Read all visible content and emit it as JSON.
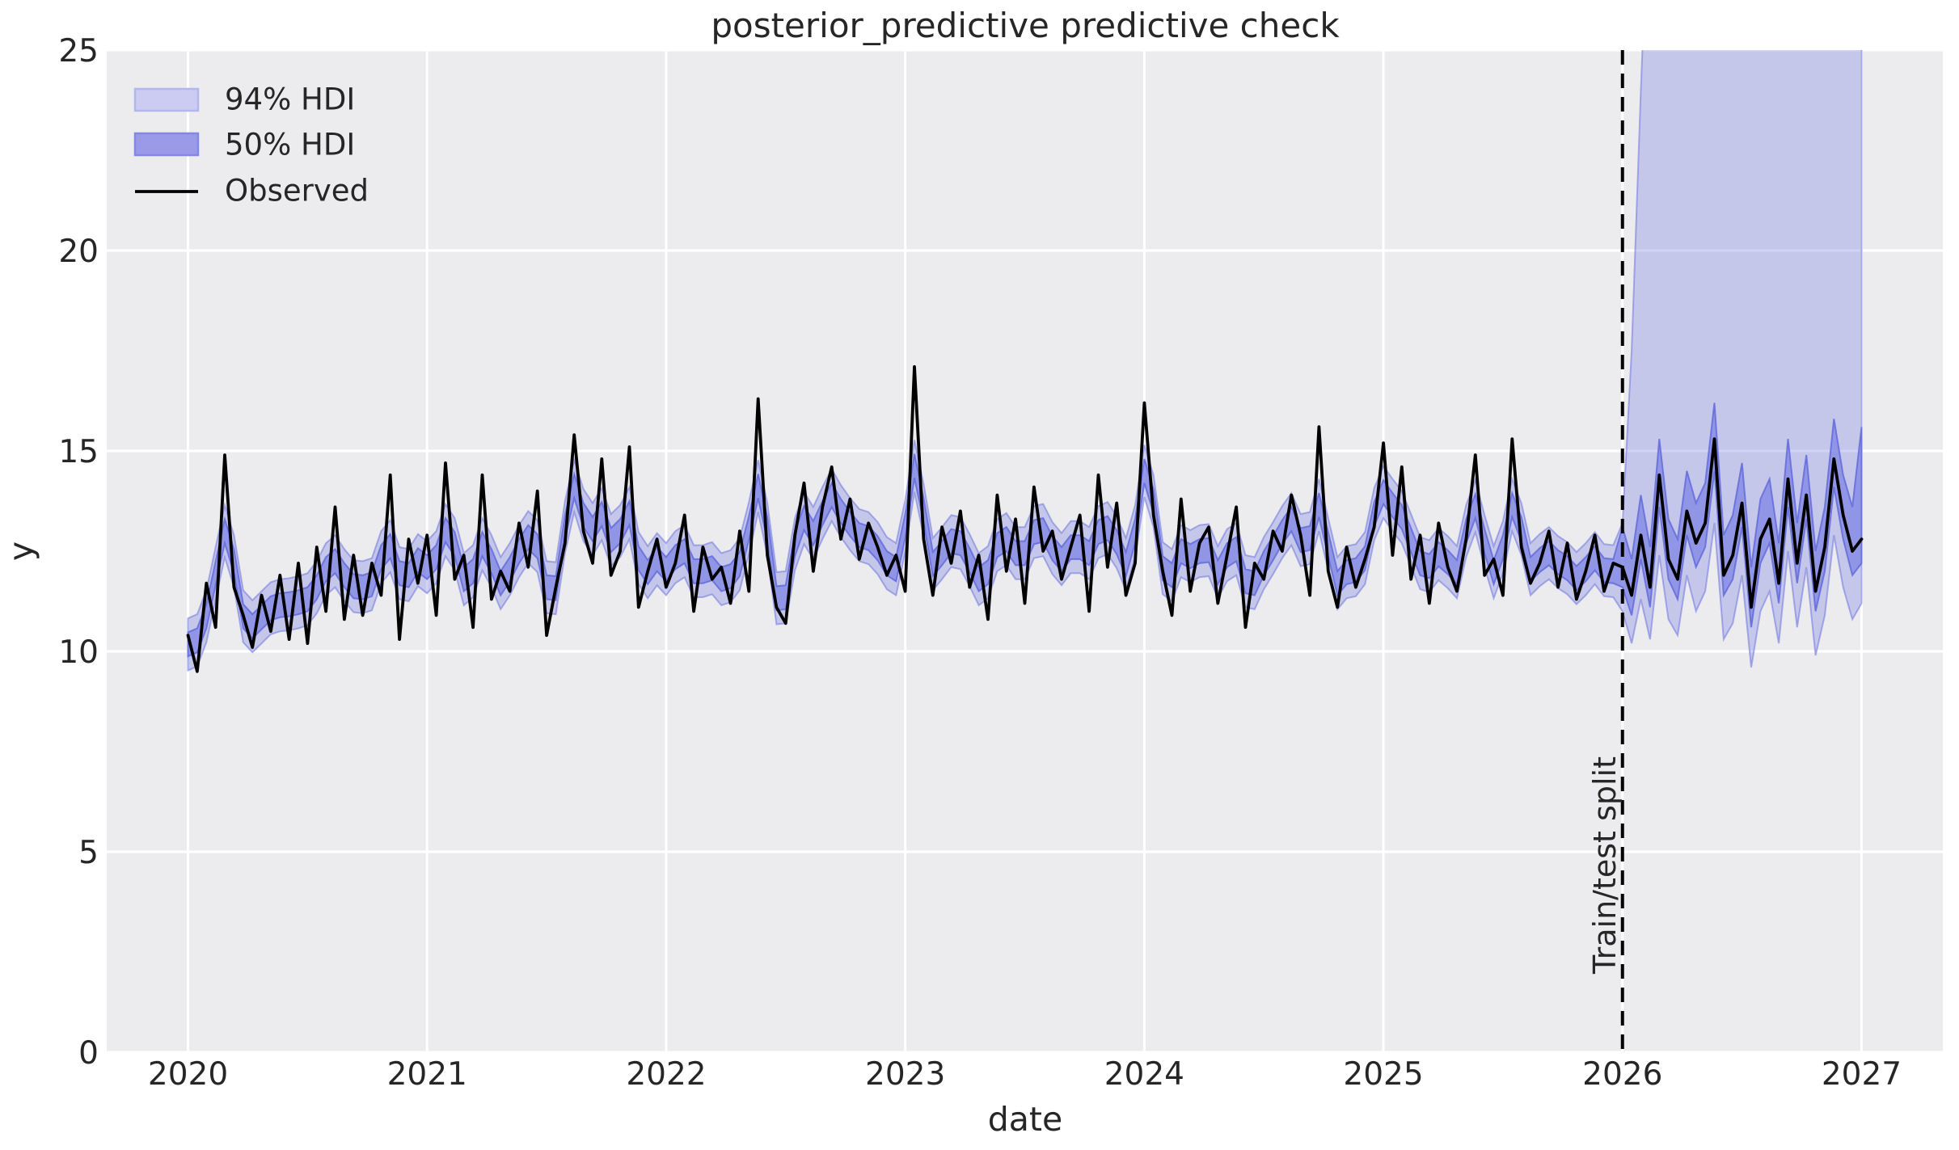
{
  "chart_data": {
    "type": "line",
    "title": "posterior_predictive predictive check",
    "xlabel": "date",
    "ylabel": "y",
    "xlim": [
      2019.66,
      2027.34
    ],
    "ylim": [
      0,
      25
    ],
    "xticks": [
      2020,
      2021,
      2022,
      2023,
      2024,
      2025,
      2026,
      2027
    ],
    "yticks": [
      0,
      5,
      10,
      15,
      20,
      25
    ],
    "grid": true,
    "legend_position": "upper left",
    "split": {
      "x": 2026.0,
      "label": "Train/test split"
    },
    "legend": {
      "items": [
        {
          "label": "94% HDI",
          "swatch": "patch",
          "fill": "#ccccf2",
          "edge": "#b4b6ee"
        },
        {
          "label": "50% HDI",
          "swatch": "patch",
          "fill": "#9a9ae9",
          "edge": "#8487e4"
        },
        {
          "label": "Observed",
          "swatch": "line",
          "color": "#000000"
        }
      ]
    },
    "colors": {
      "figure_bg": "#ffffff",
      "axes_bg": "#ececee",
      "grid": "#ffffff",
      "observed": "#000000",
      "split_line": "#000000",
      "hdi94_fill": "rgba(123,130,226,0.35)",
      "hdi94_edge": "rgba(110,117,222,0.55)",
      "hdi50_fill": "rgba(123,130,226,0.70)",
      "hdi50_edge": "rgba(95,102,218,0.80)",
      "text": "#262626"
    },
    "series": {
      "x_start": 2020.0,
      "x_step_years": 0.03846153846,
      "forecast_start_index": 156,
      "hdi94_train_halfwidth": 0.65,
      "hdi50_train_halfwidth": 0.3,
      "observed": [
        10.4,
        9.5,
        11.7,
        10.6,
        14.9,
        11.6,
        10.9,
        10.1,
        11.4,
        10.5,
        11.9,
        10.3,
        12.2,
        10.2,
        12.6,
        11.0,
        13.6,
        10.8,
        12.4,
        10.9,
        12.2,
        11.4,
        14.4,
        10.3,
        12.8,
        11.7,
        12.9,
        10.9,
        14.7,
        11.8,
        12.4,
        10.6,
        14.4,
        11.3,
        12.0,
        11.5,
        13.2,
        12.1,
        14.0,
        10.4,
        11.6,
        12.7,
        15.4,
        13.0,
        12.2,
        14.8,
        11.9,
        12.5,
        15.1,
        11.1,
        12.0,
        12.8,
        11.6,
        12.2,
        13.4,
        11.0,
        12.6,
        11.8,
        12.1,
        11.2,
        13.0,
        11.5,
        16.3,
        12.4,
        11.1,
        10.7,
        12.9,
        14.2,
        12.0,
        13.6,
        14.6,
        12.8,
        13.8,
        12.3,
        13.2,
        12.6,
        11.9,
        12.4,
        11.5,
        17.1,
        12.8,
        11.4,
        13.1,
        12.2,
        13.5,
        11.6,
        12.4,
        10.8,
        13.9,
        12.0,
        13.3,
        11.2,
        14.1,
        12.5,
        13.0,
        11.8,
        12.6,
        13.4,
        11.0,
        14.4,
        12.1,
        13.7,
        11.4,
        12.2,
        16.2,
        13.4,
        12.0,
        10.9,
        13.8,
        11.5,
        12.7,
        13.1,
        11.2,
        12.4,
        13.6,
        10.6,
        12.2,
        11.8,
        13.0,
        12.5,
        13.9,
        12.9,
        11.4,
        15.6,
        12.0,
        11.1,
        12.6,
        11.6,
        12.3,
        13.1,
        15.2,
        12.4,
        14.6,
        11.8,
        12.9,
        11.2,
        13.2,
        12.1,
        11.5,
        12.8,
        14.9,
        11.9,
        12.3,
        11.4,
        15.3,
        12.6,
        11.7,
        12.2,
        13.0,
        11.6,
        12.7,
        11.3,
        12.0,
        12.9,
        11.5,
        12.2,
        12.1,
        11.4,
        12.9,
        11.6,
        14.4,
        12.3,
        11.8,
        13.5,
        12.7,
        13.2,
        15.3,
        11.9,
        12.4,
        13.7,
        11.1,
        12.8,
        13.3,
        11.7,
        14.3,
        12.2,
        13.9,
        11.5,
        12.6,
        14.8,
        13.4,
        12.5,
        12.8
      ],
      "forecast": {
        "hdi94_upper": [
          13.2,
          17.5,
          24.0,
          30.0,
          36.0,
          40.0,
          42.0,
          41.0,
          43.0,
          42.0,
          44.0,
          41.0,
          42.0,
          43.0,
          40.0,
          42.0,
          43.0,
          41.0,
          44.0,
          42.0,
          43.0,
          40.0,
          42.0,
          44.0,
          43.0,
          42.0,
          43.0
        ],
        "hdi94_lower": [
          11.0,
          10.2,
          11.3,
          10.3,
          12.4,
          10.8,
          10.4,
          11.9,
          11.0,
          11.5,
          13.2,
          10.3,
          10.7,
          11.9,
          9.6,
          11.0,
          11.5,
          10.2,
          12.5,
          10.6,
          12.1,
          9.9,
          10.9,
          12.9,
          11.6,
          10.8,
          11.2
        ],
        "hdi50_upper": [
          13.1,
          12.3,
          13.9,
          12.6,
          15.3,
          13.3,
          12.8,
          14.5,
          13.7,
          14.2,
          16.2,
          12.9,
          13.4,
          14.7,
          12.1,
          13.8,
          14.3,
          12.7,
          15.3,
          13.2,
          14.9,
          12.5,
          13.6,
          15.8,
          14.4,
          13.6,
          15.6
        ],
        "hdi50_lower": [
          11.6,
          10.9,
          12.3,
          11.1,
          13.6,
          11.8,
          11.3,
          12.9,
          12.1,
          12.6,
          14.5,
          11.4,
          11.8,
          13.1,
          10.6,
          12.2,
          12.7,
          11.2,
          13.6,
          11.7,
          13.3,
          11.0,
          12.0,
          14.1,
          12.8,
          11.9,
          12.2
        ]
      }
    }
  }
}
